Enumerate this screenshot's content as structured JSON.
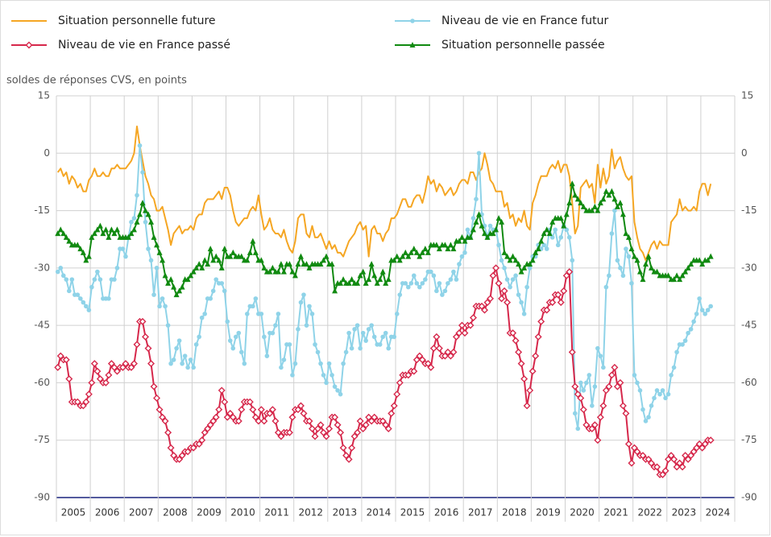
{
  "chart_data": {
    "type": "line",
    "y_axis_label": "soldes de réponses CVS, en points",
    "categories": [
      "2005",
      "2006",
      "2007",
      "2008",
      "2009",
      "2010",
      "2011",
      "2012",
      "2013",
      "2014",
      "2015",
      "2016",
      "2017",
      "2018",
      "2019",
      "2020",
      "2021",
      "2022",
      "2023",
      "2024"
    ],
    "ylim": [
      -90,
      15
    ],
    "yticks": [
      15,
      0,
      -15,
      -30,
      -45,
      -60,
      -75,
      -90
    ],
    "grid": true,
    "right_axis": true,
    "series": [
      {
        "name": "Situation personnelle future",
        "color": "#f5a623",
        "marker": "none",
        "values": [
          [
            -5,
            -4,
            -6,
            -5,
            -8,
            -6,
            -7,
            -9,
            -8,
            -10,
            -10,
            -7
          ],
          [
            -6,
            -4,
            -6,
            -6,
            -5,
            -6,
            -6,
            -4,
            -4,
            -3,
            -4,
            -4
          ],
          [
            -4,
            -3,
            -2,
            0,
            7,
            2,
            -2,
            -6,
            -8,
            -11,
            -12,
            -15
          ],
          [
            -15,
            -14,
            -17,
            -20,
            -24,
            -21,
            -20,
            -19,
            -21,
            -20,
            -20,
            -19
          ],
          [
            -20,
            -17,
            -16,
            -16,
            -13,
            -12,
            -12,
            -12,
            -11,
            -10,
            -12,
            -9
          ],
          [
            -9,
            -11,
            -15,
            -18,
            -19,
            -18,
            -17,
            -17,
            -15,
            -14,
            -15,
            -11
          ],
          [
            -16,
            -20,
            -19,
            -17,
            -20,
            -21,
            -21,
            -22,
            -20,
            -23,
            -25,
            -26
          ],
          [
            -23,
            -17,
            -16,
            -16,
            -21,
            -22,
            -19,
            -22,
            -22,
            -21,
            -23,
            -25
          ],
          [
            -23,
            -25,
            -24,
            -26,
            -26,
            -27,
            -25,
            -23,
            -22,
            -21,
            -19,
            -18
          ],
          [
            -20,
            -19,
            -27,
            -20,
            -19,
            -21,
            -21,
            -23,
            -21,
            -20,
            -17,
            -17
          ],
          [
            -16,
            -14,
            -12,
            -12,
            -14,
            -14,
            -12,
            -11,
            -11,
            -13,
            -10,
            -6
          ],
          [
            -8,
            -7,
            -10,
            -8,
            -9,
            -11,
            -10,
            -9,
            -11,
            -10,
            -8,
            -7
          ],
          [
            -7,
            -8,
            -5,
            -5,
            -7,
            -5,
            -4,
            0,
            -3,
            -7,
            -8,
            -10
          ],
          [
            -10,
            -10,
            -14,
            -13,
            -17,
            -16,
            -19,
            -17,
            -18,
            -15,
            -19,
            -20
          ],
          [
            -13,
            -11,
            -8,
            -6,
            -6,
            -6,
            -4,
            -3,
            -4,
            -2,
            -5,
            -3
          ],
          [
            -3,
            -6,
            -13,
            -21,
            -19,
            -9,
            -8,
            -7,
            -9,
            -8,
            -13,
            -3
          ],
          [
            -9,
            -4,
            -8,
            -6,
            1,
            -4,
            -2,
            -1,
            -4,
            -6,
            -7,
            -6
          ],
          [
            -18,
            -22,
            -25,
            -26,
            -28,
            -26,
            -24,
            -23,
            -25,
            -23,
            -24,
            -24
          ],
          [
            -24,
            -18,
            -17,
            -16,
            -12,
            -15,
            -14,
            -15,
            -15,
            -14,
            -15,
            -10
          ],
          [
            -8,
            -8,
            -11,
            -8
          ]
        ]
      },
      {
        "name": "Niveau de vie en France futur",
        "color": "#8fd3e8",
        "marker": "circle",
        "values": [
          [
            -31,
            -30,
            -32,
            -33,
            -36,
            -33,
            -37,
            -37,
            -38,
            -39,
            -40,
            -41
          ],
          [
            -35,
            -33,
            -31,
            -33,
            -38,
            -38,
            -38,
            -33,
            -33,
            -30,
            -25,
            -25
          ],
          [
            -27,
            -22,
            -18,
            -17,
            -11,
            2,
            -5,
            -18,
            -25,
            -28,
            -37,
            -30
          ],
          [
            -40,
            -38,
            -40,
            -45,
            -55,
            -54,
            -51,
            -49,
            -55,
            -53,
            -56,
            -54
          ],
          [
            -56,
            -50,
            -48,
            -43,
            -42,
            -38,
            -38,
            -36,
            -33,
            -34,
            -34,
            -36
          ],
          [
            -44,
            -49,
            -51,
            -48,
            -47,
            -52,
            -55,
            -42,
            -40,
            -40,
            -38,
            -42
          ],
          [
            -42,
            -48,
            -53,
            -47,
            -47,
            -45,
            -42,
            -56,
            -54,
            -50,
            -50,
            -58
          ],
          [
            -55,
            -46,
            -39,
            -37,
            -45,
            -40,
            -42,
            -50,
            -52,
            -55,
            -58,
            -60
          ],
          [
            -55,
            -58,
            -61,
            -62,
            -63,
            -55,
            -52,
            -47,
            -51,
            -46,
            -45,
            -51
          ],
          [
            -47,
            -49,
            -46,
            -45,
            -48,
            -50,
            -50,
            -48,
            -47,
            -51,
            -48,
            -48
          ],
          [
            -42,
            -37,
            -34,
            -34,
            -35,
            -34,
            -32,
            -34,
            -35,
            -34,
            -33,
            -31
          ],
          [
            -31,
            -32,
            -36,
            -34,
            -37,
            -36,
            -34,
            -33,
            -31,
            -33,
            -29,
            -27
          ],
          [
            -26,
            -20,
            -22,
            -17,
            -12,
            0,
            -16,
            -19,
            -22,
            -19,
            -20,
            -20
          ],
          [
            -24,
            -28,
            -30,
            -33,
            -35,
            -33,
            -32,
            -37,
            -39,
            -42,
            -35,
            -30
          ],
          [
            -27,
            -27,
            -24,
            -25,
            -24,
            -25,
            -20,
            -22,
            -20,
            -24,
            -22,
            -19
          ],
          [
            -20,
            -22,
            -28,
            -68,
            -72,
            -60,
            -62,
            -60,
            -58,
            -66,
            -61,
            -51
          ],
          [
            -53,
            -56,
            -35,
            -32,
            -21,
            -15,
            -28,
            -30,
            -32,
            -25,
            -27,
            -34
          ],
          [
            -58,
            -60,
            -62,
            -67,
            -70,
            -69,
            -66,
            -64,
            -62,
            -63,
            -62,
            -64
          ],
          [
            -63,
            -58,
            -56,
            -52,
            -50,
            -50,
            -49,
            -47,
            -46,
            -44,
            -42,
            -38
          ],
          [
            -41,
            -42,
            -41,
            -40
          ]
        ]
      },
      {
        "name": "Niveau de vie en France passé",
        "color": "#d6284b",
        "marker": "diamond",
        "values": [
          [
            -56,
            -53,
            -54,
            -54,
            -59,
            -65,
            -65,
            -65,
            -66,
            -66,
            -65,
            -63
          ],
          [
            -60,
            -55,
            -57,
            -59,
            -60,
            -60,
            -58,
            -55,
            -56,
            -57,
            -56,
            -56
          ],
          [
            -55,
            -56,
            -56,
            -55,
            -50,
            -44,
            -44,
            -48,
            -51,
            -55,
            -61,
            -64
          ],
          [
            -67,
            -69,
            -70,
            -73,
            -77,
            -79,
            -80,
            -80,
            -79,
            -78,
            -78,
            -77
          ],
          [
            -77,
            -76,
            -76,
            -75,
            -73,
            -72,
            -71,
            -70,
            -69,
            -67,
            -62,
            -65
          ],
          [
            -69,
            -68,
            -69,
            -70,
            -70,
            -67,
            -65,
            -65,
            -65,
            -67,
            -69,
            -70
          ],
          [
            -67,
            -70,
            -68,
            -68,
            -67,
            -70,
            -73,
            -74,
            -73,
            -73,
            -73,
            -69
          ],
          [
            -67,
            -67,
            -66,
            -68,
            -70,
            -70,
            -72,
            -74,
            -72,
            -71,
            -73,
            -74
          ],
          [
            -72,
            -69,
            -69,
            -71,
            -73,
            -77,
            -79,
            -80,
            -77,
            -74,
            -73,
            -70
          ],
          [
            -72,
            -71,
            -69,
            -70,
            -69,
            -70,
            -70,
            -70,
            -71,
            -72,
            -68,
            -66
          ],
          [
            -63,
            -60,
            -58,
            -58,
            -58,
            -57,
            -57,
            -54,
            -53,
            -54,
            -55,
            -55
          ],
          [
            -56,
            -51,
            -48,
            -51,
            -53,
            -53,
            -52,
            -53,
            -52,
            -48,
            -47,
            -45
          ],
          [
            -47,
            -45,
            -45,
            -43,
            -40,
            -40,
            -40,
            -41,
            -39,
            -38,
            -32,
            -30
          ],
          [
            -34,
            -38,
            -36,
            -39,
            -47,
            -47,
            -49,
            -52,
            -55,
            -59,
            -66,
            -62
          ],
          [
            -57,
            -53,
            -48,
            -44,
            -41,
            -41,
            -39,
            -39,
            -37,
            -37,
            -39,
            -36
          ],
          [
            -32,
            -31,
            -52,
            -61,
            -63,
            -64,
            -67,
            -71,
            -72,
            -72,
            -71,
            -75
          ],
          [
            -69,
            -66,
            -62,
            -61,
            -58,
            -56,
            -61,
            -60,
            -66,
            -68,
            -76,
            -81
          ],
          [
            -77,
            -78,
            -79,
            -79,
            -80,
            -80,
            -81,
            -82,
            -82,
            -84,
            -84,
            -83
          ],
          [
            -80,
            -79,
            -80,
            -82,
            -81,
            -82,
            -79,
            -80,
            -79,
            -78,
            -77,
            -76
          ],
          [
            -77,
            -76,
            -75,
            -75
          ]
        ]
      },
      {
        "name": "Situation personnelle passée",
        "color": "#118a11",
        "marker": "triangle",
        "values": [
          [
            -21,
            -20,
            -21,
            -22,
            -23,
            -24,
            -24,
            -24,
            -25,
            -26,
            -28,
            -27
          ],
          [
            -22,
            -21,
            -20,
            -19,
            -21,
            -20,
            -22,
            -20,
            -21,
            -20,
            -22,
            -22
          ],
          [
            -22,
            -22,
            -21,
            -20,
            -18,
            -16,
            -13,
            -15,
            -16,
            -18,
            -22,
            -24
          ],
          [
            -26,
            -28,
            -32,
            -34,
            -33,
            -35,
            -37,
            -36,
            -35,
            -33,
            -33,
            -32
          ],
          [
            -31,
            -30,
            -29,
            -30,
            -28,
            -29,
            -25,
            -28,
            -27,
            -28,
            -30,
            -25
          ],
          [
            -27,
            -27,
            -26,
            -27,
            -27,
            -27,
            -28,
            -28,
            -26,
            -23,
            -26,
            -28
          ],
          [
            -28,
            -30,
            -31,
            -31,
            -30,
            -31,
            -31,
            -29,
            -31,
            -29,
            -29,
            -31
          ],
          [
            -32,
            -29,
            -27,
            -29,
            -29,
            -30,
            -29,
            -29,
            -29,
            -29,
            -28,
            -27
          ],
          [
            -29,
            -29,
            -36,
            -34,
            -34,
            -33,
            -34,
            -34,
            -33,
            -34,
            -34,
            -32
          ],
          [
            -31,
            -34,
            -33,
            -29,
            -32,
            -34,
            -33,
            -31,
            -34,
            -33,
            -28,
            -28
          ],
          [
            -27,
            -28,
            -27,
            -26,
            -27,
            -26,
            -25,
            -26,
            -27,
            -26,
            -25,
            -26
          ],
          [
            -24,
            -24,
            -24,
            -25,
            -24,
            -24,
            -25,
            -24,
            -25,
            -23,
            -23,
            -22
          ],
          [
            -23,
            -22,
            -22,
            -20,
            -18,
            -16,
            -19,
            -21,
            -22,
            -21,
            -21,
            -20
          ],
          [
            -17,
            -18,
            -26,
            -27,
            -28,
            -27,
            -28,
            -29,
            -31,
            -30,
            -29,
            -29
          ],
          [
            -28,
            -26,
            -25,
            -23,
            -21,
            -20,
            -21,
            -18,
            -17,
            -17,
            -17,
            -19
          ],
          [
            -16,
            -13,
            -8,
            -11,
            -12,
            -13,
            -14,
            -15,
            -15,
            -15,
            -14,
            -15
          ],
          [
            -13,
            -12,
            -10,
            -11,
            -10,
            -12,
            -14,
            -13,
            -16,
            -21,
            -22,
            -25
          ],
          [
            -27,
            -28,
            -31,
            -33,
            -29,
            -27,
            -30,
            -31,
            -31,
            -32,
            -32,
            -32
          ],
          [
            -32,
            -33,
            -33,
            -32,
            -33,
            -32,
            -31,
            -30,
            -29,
            -28,
            -28,
            -28
          ],
          [
            -29,
            -28,
            -28,
            -27
          ]
        ]
      }
    ]
  }
}
